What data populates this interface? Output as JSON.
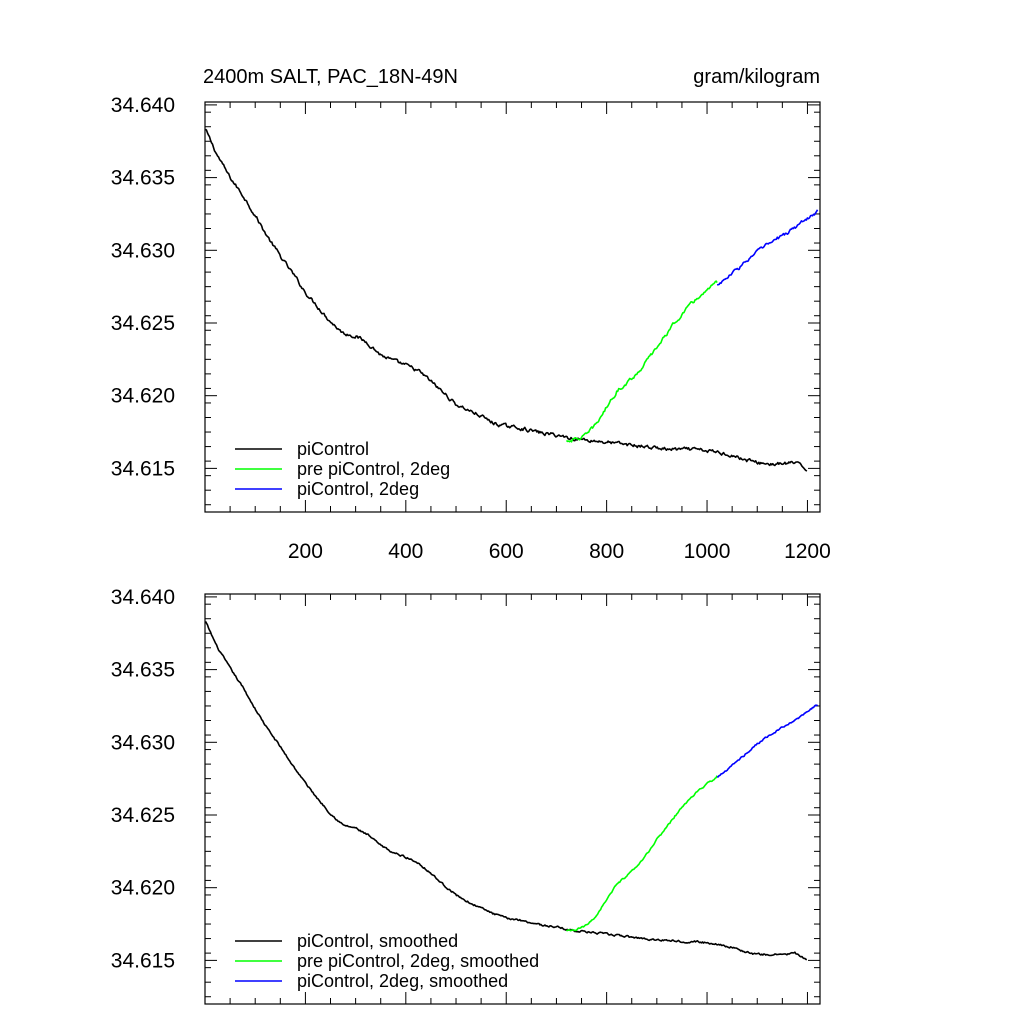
{
  "chart_data": [
    {
      "type": "line",
      "title": "2400m SALT, PAC_18N-49N",
      "units": "gram/kilogram",
      "xlabel": "",
      "ylabel": "",
      "xlim": [
        0,
        1225
      ],
      "ylim": [
        34.612,
        34.6402
      ],
      "x_ticks": [
        200,
        400,
        600,
        800,
        1000,
        1200
      ],
      "x_tick_labels": [
        "200",
        "400",
        "600",
        "800",
        "1000",
        "1200"
      ],
      "y_ticks": [
        34.615,
        34.62,
        34.625,
        34.63,
        34.635,
        34.64
      ],
      "y_tick_labels": [
        "34.615",
        "34.620",
        "34.625",
        "34.630",
        "34.635",
        "34.640"
      ],
      "legend_placement": "bottom-left",
      "series": [
        {
          "name": "piControl",
          "color": "#000000",
          "x": [
            1,
            25,
            50,
            75,
            100,
            125,
            150,
            175,
            200,
            225,
            250,
            275,
            300,
            325,
            350,
            375,
            400,
            425,
            450,
            475,
            500,
            525,
            550,
            575,
            600,
            625,
            650,
            675,
            700,
            725,
            750,
            775,
            800,
            825,
            850,
            875,
            900,
            925,
            950,
            975,
            1000,
            1025,
            1050,
            1075,
            1100,
            1125,
            1150,
            1175,
            1200
          ],
          "y": [
            34.6383,
            34.6365,
            34.635,
            34.6338,
            34.6324,
            34.6309,
            34.6296,
            34.6284,
            34.6271,
            34.6261,
            34.6251,
            34.6243,
            34.6241,
            34.6236,
            34.6228,
            34.6224,
            34.6221,
            34.6217,
            34.621,
            34.6202,
            34.6194,
            34.619,
            34.6186,
            34.6181,
            34.6179,
            34.6178,
            34.6176,
            34.6174,
            34.6173,
            34.6171,
            34.617,
            34.6169,
            34.6168,
            34.6167,
            34.6166,
            34.6165,
            34.6164,
            34.6163,
            34.6163,
            34.6163,
            34.6162,
            34.6161,
            34.6159,
            34.6156,
            34.6154,
            34.6153,
            34.6153,
            34.6154,
            34.6149
          ]
        },
        {
          "name": "pre piControl, 2deg",
          "color": "#00ff00",
          "x": [
            720,
            740,
            760,
            780,
            800,
            820,
            840,
            860,
            880,
            900,
            920,
            940,
            960,
            980,
            1000,
            1020
          ],
          "y": [
            34.6169,
            34.617,
            34.6173,
            34.6181,
            34.6192,
            34.6203,
            34.6209,
            34.6215,
            34.6224,
            34.6233,
            34.6243,
            34.6252,
            34.626,
            34.6267,
            34.6272,
            34.6278
          ]
        },
        {
          "name": "piControl, 2deg",
          "color": "#0000ff",
          "x": [
            1020,
            1040,
            1060,
            1080,
            1100,
            1120,
            1140,
            1160,
            1180,
            1200,
            1220
          ],
          "y": [
            34.6276,
            34.6281,
            34.6287,
            34.6293,
            34.6299,
            34.6304,
            34.6308,
            34.6312,
            34.6317,
            34.6322,
            34.6327
          ]
        }
      ]
    },
    {
      "type": "line",
      "title": "",
      "xlabel": "",
      "ylabel": "",
      "xlim": [
        0,
        1225
      ],
      "ylim": [
        34.612,
        34.6402
      ],
      "x_ticks": [
        200,
        400,
        600,
        800,
        1000,
        1200
      ],
      "y_ticks": [
        34.615,
        34.62,
        34.625,
        34.63,
        34.635,
        34.64
      ],
      "y_tick_labels": [
        "34.615",
        "34.620",
        "34.625",
        "34.630",
        "34.635",
        "34.640"
      ],
      "legend_placement": "bottom-left",
      "series": [
        {
          "name": "piControl, smoothed",
          "color": "#000000",
          "x": [
            1,
            25,
            50,
            75,
            100,
            125,
            150,
            175,
            200,
            225,
            250,
            275,
            300,
            325,
            350,
            375,
            400,
            425,
            450,
            475,
            500,
            525,
            550,
            575,
            600,
            625,
            650,
            675,
            700,
            725,
            750,
            775,
            800,
            825,
            850,
            875,
            900,
            925,
            950,
            975,
            1000,
            1025,
            1050,
            1075,
            1100,
            1125,
            1150,
            1175,
            1200
          ],
          "y": [
            34.6383,
            34.6365,
            34.6351,
            34.6338,
            34.6323,
            34.6309,
            34.6297,
            34.6284,
            34.6272,
            34.6261,
            34.6251,
            34.6243,
            34.6241,
            34.6236,
            34.6229,
            34.6224,
            34.6221,
            34.6217,
            34.621,
            34.6202,
            34.6195,
            34.619,
            34.6186,
            34.6182,
            34.6179,
            34.6178,
            34.6176,
            34.6174,
            34.6173,
            34.6171,
            34.617,
            34.6169,
            34.6168,
            34.6167,
            34.6166,
            34.6165,
            34.6164,
            34.6164,
            34.6163,
            34.6163,
            34.6162,
            34.6161,
            34.6159,
            34.6156,
            34.6154,
            34.6154,
            34.6154,
            34.6155,
            34.615
          ]
        },
        {
          "name": "pre piControl, 2deg, smoothed",
          "color": "#00ff00",
          "x": [
            720,
            740,
            760,
            780,
            800,
            820,
            840,
            860,
            880,
            900,
            920,
            940,
            960,
            980,
            1000,
            1020
          ],
          "y": [
            34.617,
            34.6171,
            34.6174,
            34.6181,
            34.6192,
            34.6202,
            34.6208,
            34.6214,
            34.6223,
            34.6233,
            34.6242,
            34.6251,
            34.6259,
            34.6266,
            34.6271,
            34.6277
          ]
        },
        {
          "name": "piControl, 2deg, smoothed",
          "color": "#0000ff",
          "x": [
            1020,
            1040,
            1060,
            1080,
            1100,
            1120,
            1140,
            1160,
            1180,
            1200,
            1220
          ],
          "y": [
            34.6276,
            34.6281,
            34.6287,
            34.6293,
            34.6299,
            34.6304,
            34.6308,
            34.6312,
            34.6316,
            34.6321,
            34.6326
          ]
        }
      ]
    }
  ]
}
